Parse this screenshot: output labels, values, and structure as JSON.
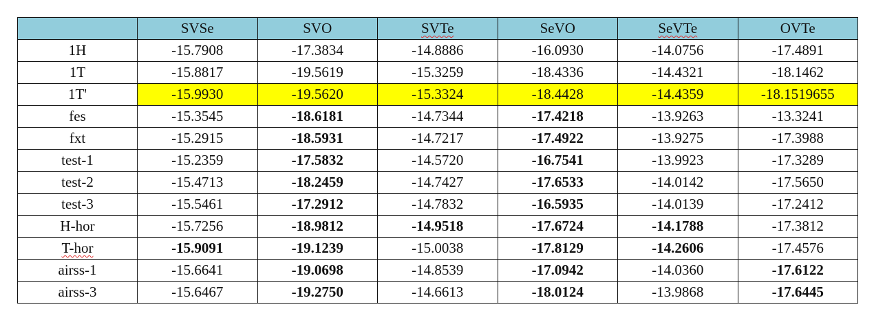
{
  "table": {
    "headers": [
      "",
      "SVSe",
      "SVO",
      "SVTe",
      "SeVO",
      "SeVTe",
      "OVTe"
    ],
    "squiggle_headers": [
      3,
      5
    ],
    "highlight_color": "#ffff00",
    "header_color": "#92cddc",
    "rows": [
      {
        "label": "1H",
        "values": [
          "-15.7908",
          "-17.3834",
          "-14.8886",
          "-16.0930",
          "-14.0756",
          "-17.4891"
        ],
        "bold": [],
        "highlight": false,
        "squiggle": false
      },
      {
        "label": "1T",
        "values": [
          "-15.8817",
          "-19.5619",
          "-15.3259",
          "-18.4336",
          "-14.4321",
          "-18.1462"
        ],
        "bold": [],
        "highlight": false,
        "squiggle": false
      },
      {
        "label": "1T'",
        "values": [
          "-15.9930",
          "-19.5620",
          "-15.3324",
          "-18.4428",
          "-14.4359",
          "-18.1519655"
        ],
        "bold": [],
        "highlight": true,
        "squiggle": false
      },
      {
        "label": "fes",
        "values": [
          "-15.3545",
          "-18.6181",
          "-14.7344",
          "-17.4218",
          "-13.9263",
          "-13.3241"
        ],
        "bold": [
          1,
          3
        ],
        "highlight": false,
        "squiggle": false
      },
      {
        "label": "fxt",
        "values": [
          "-15.2915",
          "-18.5931",
          "-14.7217",
          "-17.4922",
          "-13.9275",
          "-17.3988"
        ],
        "bold": [
          1,
          3
        ],
        "highlight": false,
        "squiggle": false
      },
      {
        "label": "test-1",
        "values": [
          "-15.2359",
          "-17.5832",
          "-14.5720",
          "-16.7541",
          "-13.9923",
          "-17.3289"
        ],
        "bold": [
          1,
          3
        ],
        "highlight": false,
        "squiggle": false
      },
      {
        "label": "test-2",
        "values": [
          "-15.4713",
          "-18.2459",
          "-14.7427",
          "-17.6533",
          "-14.0142",
          "-17.5650"
        ],
        "bold": [
          1,
          3
        ],
        "highlight": false,
        "squiggle": false
      },
      {
        "label": "test-3",
        "values": [
          "-15.5461",
          "-17.2912",
          "-14.7832",
          "-16.5935",
          "-14.0139",
          "-17.2412"
        ],
        "bold": [
          1,
          3
        ],
        "highlight": false,
        "squiggle": false
      },
      {
        "label": "H-hor",
        "values": [
          "-15.7256",
          "-18.9812",
          "-14.9518",
          "-17.6724",
          "-14.1788",
          "-17.3812"
        ],
        "bold": [
          1,
          2,
          3,
          4
        ],
        "highlight": false,
        "squiggle": false
      },
      {
        "label": "T-hor",
        "values": [
          "-15.9091",
          "-19.1239",
          "-15.0038",
          "-17.8129",
          "-14.2606",
          "-17.4576"
        ],
        "bold": [
          0,
          1,
          3,
          4
        ],
        "highlight": false,
        "squiggle": true
      },
      {
        "label": "airss-1",
        "values": [
          "-15.6641",
          "-19.0698",
          "-14.8539",
          "-17.0942",
          "-14.0360",
          "-17.6122"
        ],
        "bold": [
          1,
          3,
          5
        ],
        "highlight": false,
        "squiggle": false
      },
      {
        "label": "airss-3",
        "values": [
          "-15.6467",
          "-19.2750",
          "-14.6613",
          "-18.0124",
          "-13.9868",
          "-17.6445"
        ],
        "bold": [
          1,
          3,
          5
        ],
        "highlight": false,
        "squiggle": false
      }
    ]
  }
}
